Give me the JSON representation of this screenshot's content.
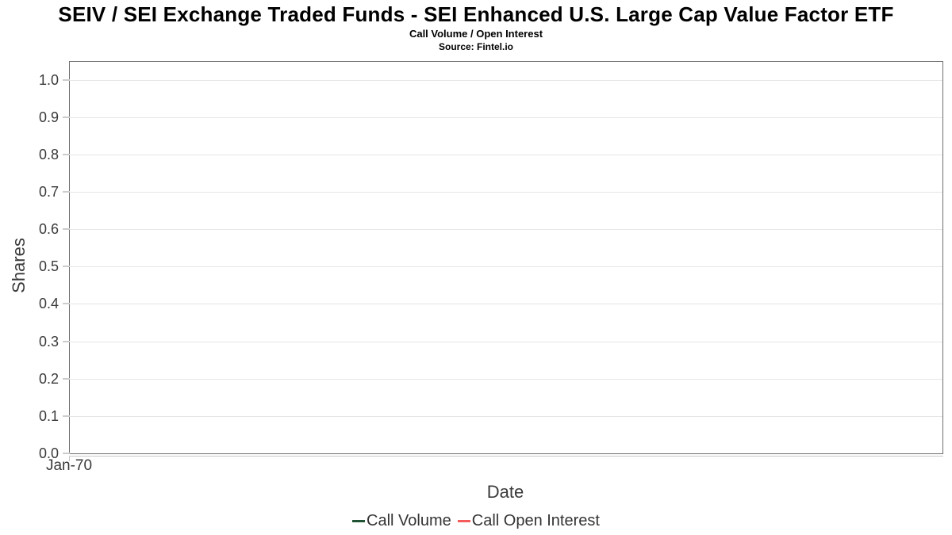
{
  "header": {
    "title": "SEIV / SEI Exchange Traded Funds - SEI Enhanced U.S. Large Cap Value Factor ETF",
    "subtitle": "Call Volume / Open Interest",
    "source": "Source: Fintel.io"
  },
  "chart_data": {
    "type": "line",
    "title": "SEIV / SEI Exchange Traded Funds - SEI Enhanced U.S. Large Cap Value Factor ETF",
    "subtitle": "Call Volume / Open Interest",
    "source": "Source: Fintel.io",
    "xlabel": "Date",
    "ylabel": "Shares",
    "ylim": [
      0,
      1.048
    ],
    "yticks": [
      0.0,
      0.1,
      0.2,
      0.3,
      0.4,
      0.5,
      0.6,
      0.7,
      0.8,
      0.9,
      1.0
    ],
    "xticks": [
      {
        "label": "Jan-70",
        "position": 0
      }
    ],
    "grid": true,
    "legend_position": "bottom",
    "series": [
      {
        "name": "Call Volume",
        "color": "#1e5434",
        "x": [],
        "values": []
      },
      {
        "name": "Call Open Interest",
        "color": "#f45b5b",
        "x": [],
        "values": []
      }
    ]
  }
}
